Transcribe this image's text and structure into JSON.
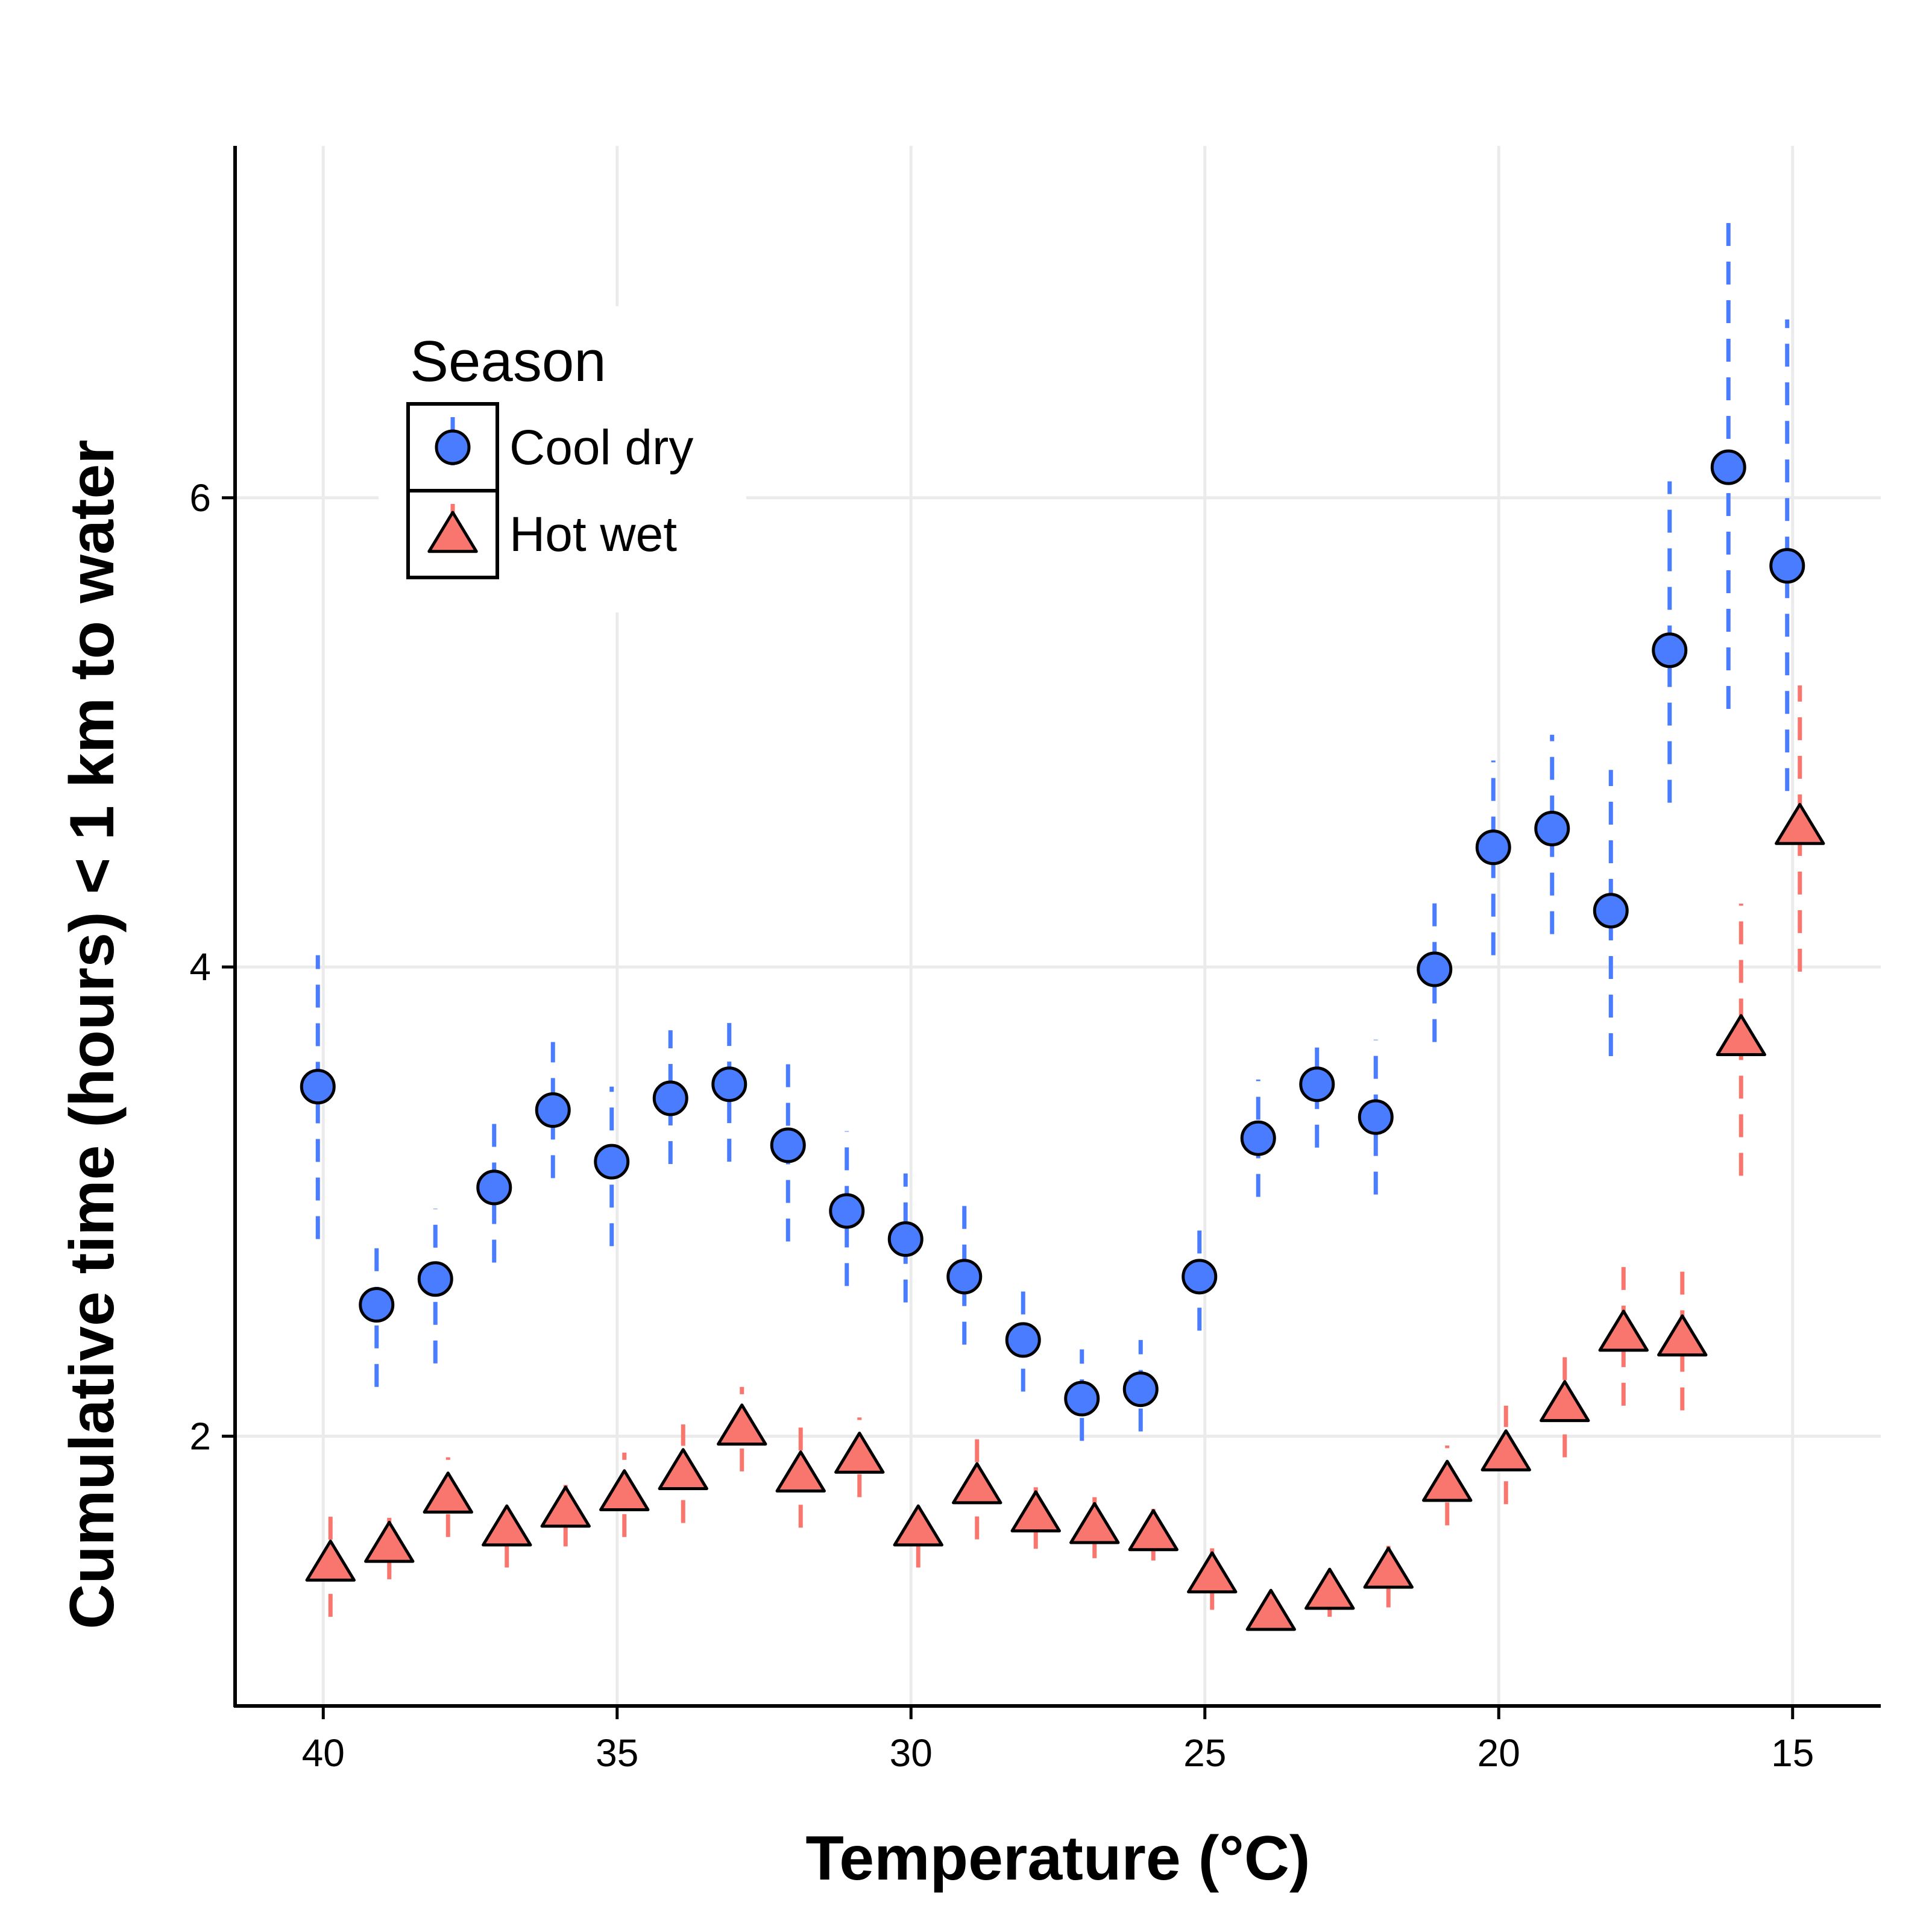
{
  "chart_data": {
    "type": "scatter",
    "xlabel": "Temperature (°C)",
    "ylabel": "Cumulative time (hours) < 1 km to water",
    "xlim": [
      41.5,
      13.5
    ],
    "x_reversed": true,
    "ylim": [
      0.85,
      7.5
    ],
    "x_ticks": [
      40,
      35,
      30,
      25,
      20,
      15
    ],
    "y_ticks": [
      2,
      4,
      6
    ],
    "grid": true,
    "legend": {
      "title": "Season",
      "position": "top-left"
    },
    "error_bar_style": "dashed",
    "series": [
      {
        "name": "Cool dry",
        "marker": "circle",
        "color": "#4a7cff",
        "x": [
          40,
          39,
          38,
          37,
          36,
          35,
          34,
          33,
          32,
          31,
          30,
          29,
          28,
          27,
          26,
          25,
          24,
          23,
          22,
          21,
          20,
          19,
          18,
          17,
          16,
          15
        ],
        "y": [
          3.49,
          2.56,
          2.67,
          3.06,
          3.39,
          3.17,
          3.44,
          3.5,
          3.24,
          2.96,
          2.84,
          2.68,
          2.41,
          2.16,
          2.2,
          2.68,
          3.27,
          3.5,
          3.36,
          3.99,
          4.51,
          4.59,
          4.24,
          5.35,
          6.13,
          5.71
        ],
        "lower": [
          2.84,
          2.21,
          2.31,
          2.74,
          3.1,
          2.81,
          3.16,
          3.17,
          2.83,
          2.64,
          2.57,
          2.39,
          2.19,
          1.98,
          2.02,
          2.45,
          3.02,
          3.23,
          3.03,
          3.68,
          4.05,
          4.14,
          3.62,
          4.7,
          5.1,
          4.75
        ],
        "upper": [
          4.05,
          2.85,
          2.97,
          3.36,
          3.68,
          3.49,
          3.73,
          3.82,
          3.61,
          3.3,
          3.12,
          2.99,
          2.66,
          2.37,
          2.41,
          2.92,
          3.52,
          3.7,
          3.69,
          4.33,
          4.88,
          4.99,
          4.84,
          6.07,
          7.21,
          6.76
        ]
      },
      {
        "name": "Hot wet",
        "marker": "triangle",
        "color": "#f8766d",
        "x": [
          40,
          39,
          38,
          37,
          36,
          35,
          34,
          33,
          32,
          31,
          30,
          29,
          28,
          27,
          26,
          25,
          24,
          23,
          22,
          21,
          20,
          19,
          18,
          17,
          16,
          15
        ],
        "y": [
          1.45,
          1.53,
          1.74,
          1.6,
          1.68,
          1.75,
          1.84,
          2.03,
          1.83,
          1.91,
          1.6,
          1.78,
          1.66,
          1.61,
          1.58,
          1.4,
          1.24,
          1.33,
          1.42,
          1.79,
          1.92,
          2.13,
          2.43,
          2.41,
          3.69,
          4.59
        ],
        "lower": [
          1.23,
          1.39,
          1.57,
          1.44,
          1.53,
          1.57,
          1.63,
          1.85,
          1.61,
          1.74,
          1.44,
          1.56,
          1.52,
          1.48,
          1.47,
          1.26,
          1.19,
          1.23,
          1.27,
          1.62,
          1.71,
          1.91,
          2.13,
          2.11,
          3.11,
          3.98
        ]
      }
    ]
  }
}
